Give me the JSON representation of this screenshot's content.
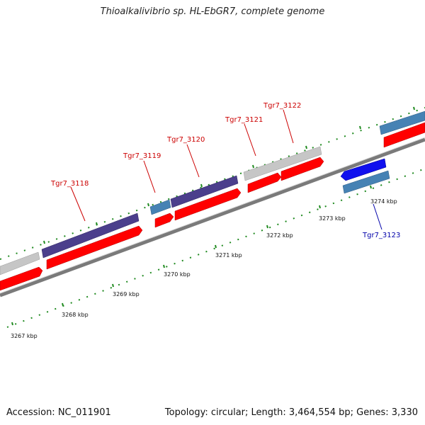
{
  "title": "Thioalkalivibrio sp. HL-EbGR7, complete genome",
  "footer": {
    "accession": "Accession: NC_011901",
    "summary": "Topology: circular; Length: 3,464,554 bp; Genes: 3,330"
  },
  "colors": {
    "cds": "#ff0000",
    "grey": "#c6c6c6",
    "purple": "#4b3f8c",
    "steel": "#4682b4",
    "blue": "#1010ee",
    "label_top": "#cc0000",
    "label_bottom": "#0000aa",
    "tick": "#1f8a1f",
    "backbone": "#7a7a7a"
  },
  "ticks": [
    "3267 kbp",
    "3268 kbp",
    "3269 kbp",
    "3270 kbp",
    "3271 kbp",
    "3272 kbp",
    "3273 kbp",
    "3274 kbp"
  ],
  "gene_labels": [
    "Tgr7_3118",
    "Tgr7_3119",
    "Tgr7_3120",
    "Tgr7_3121",
    "Tgr7_3122",
    "Tgr7_3123"
  ]
}
